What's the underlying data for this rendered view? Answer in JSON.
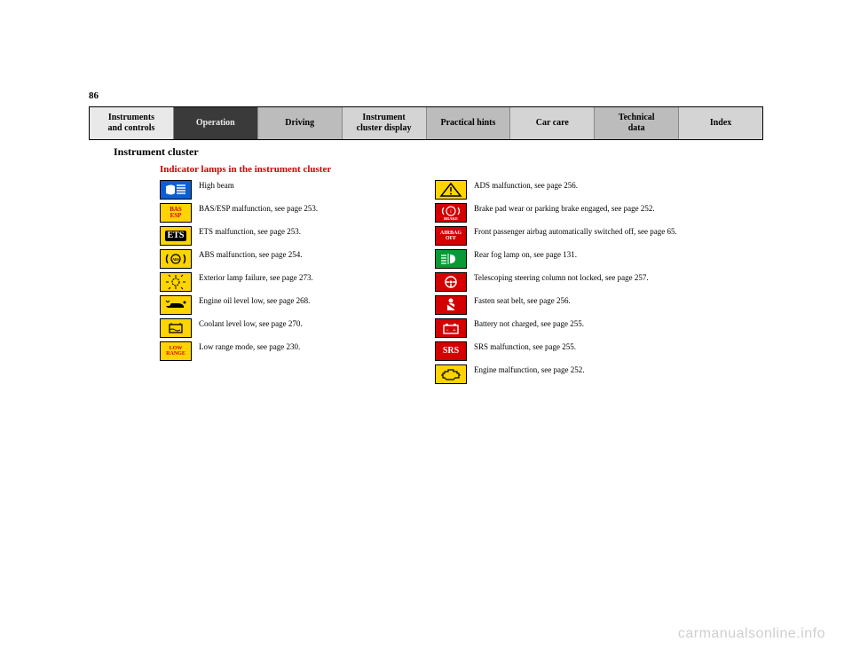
{
  "page_number": "86",
  "tabs": [
    {
      "label": "Instruments\nand controls",
      "bg": "#e9e9e9",
      "fg": "#000000"
    },
    {
      "label": "Operation",
      "bg": "#3a3a3a",
      "fg": "#e9e9e9"
    },
    {
      "label": "Driving",
      "bg": "#bcbcbc",
      "fg": "#000000"
    },
    {
      "label": "Instrument\ncluster display",
      "bg": "#d4d4d4",
      "fg": "#000000"
    },
    {
      "label": "Practical hints",
      "bg": "#bcbcbc",
      "fg": "#000000"
    },
    {
      "label": "Car care",
      "bg": "#d4d4d4",
      "fg": "#000000"
    },
    {
      "label": "Technical\ndata",
      "bg": "#bcbcbc",
      "fg": "#000000"
    },
    {
      "label": "Index",
      "bg": "#d4d4d4",
      "fg": "#000000"
    }
  ],
  "section_title": "Instrument cluster",
  "subheading": "Indicator lamps in the instrument cluster",
  "colors": {
    "blue": "#0b5fd6",
    "yellow": "#ffd400",
    "green": "#0a9a33",
    "red": "#d40000",
    "yellow_text": "#d40000",
    "white": "#ffffff",
    "black": "#000000"
  },
  "left_items": [
    {
      "icon": "high-beam",
      "bg": "blue",
      "fg": "white",
      "desc": "High beam"
    },
    {
      "icon": "bas-esp",
      "bg": "yellow",
      "fg": "yellow_text",
      "desc": "BAS/ESP malfunction, see page 253."
    },
    {
      "icon": "ets",
      "bg": "yellow",
      "fg": "white",
      "desc": "ETS malfunction, see page 253."
    },
    {
      "icon": "abs",
      "bg": "yellow",
      "fg": "black",
      "desc": "ABS malfunction, see page 254."
    },
    {
      "icon": "lamp-out",
      "bg": "yellow",
      "fg": "black",
      "desc": "Exterior lamp failure, see page 273."
    },
    {
      "icon": "oil",
      "bg": "yellow",
      "fg": "black",
      "desc": "Engine oil level low, see page 268."
    },
    {
      "icon": "coolant",
      "bg": "yellow",
      "fg": "black",
      "desc": "Coolant level low, see page 270."
    },
    {
      "icon": "low-range",
      "bg": "yellow",
      "fg": "yellow_text",
      "desc": "Low range mode, see page 230."
    }
  ],
  "right_items": [
    {
      "icon": "warning-triangle",
      "bg": "yellow",
      "fg": "black",
      "desc": "ADS malfunction, see page 256."
    },
    {
      "icon": "brake",
      "bg": "red",
      "fg": "white",
      "desc": "Brake pad wear or parking brake engaged, see page 252."
    },
    {
      "icon": "airbag-off",
      "bg": "red",
      "fg": "white",
      "desc": "Front passenger airbag automatically switched off, see page 65."
    },
    {
      "icon": "fog-rear",
      "bg": "green",
      "fg": "white",
      "desc": "Rear fog lamp on, see page 131."
    },
    {
      "icon": "steering",
      "bg": "red",
      "fg": "white",
      "desc": "Telescoping steering column not locked, see page 257."
    },
    {
      "icon": "seatbelt",
      "bg": "red",
      "fg": "white",
      "desc": "Fasten seat belt, see page 256."
    },
    {
      "icon": "battery",
      "bg": "red",
      "fg": "white",
      "desc": "Battery not charged, see page 255."
    },
    {
      "icon": "srs",
      "bg": "red",
      "fg": "white",
      "desc": "SRS malfunction, see page 255."
    },
    {
      "icon": "engine",
      "bg": "yellow",
      "fg": "black",
      "desc": "Engine malfunction, see page 252."
    }
  ],
  "watermark": "carmanualsonline.info"
}
